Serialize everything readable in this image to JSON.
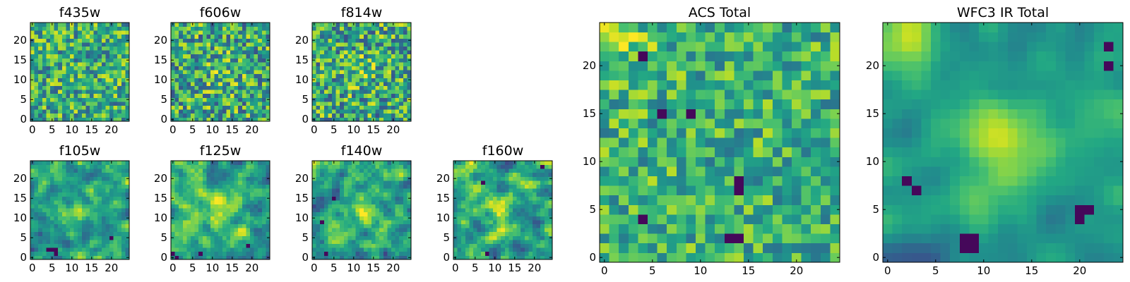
{
  "chart_data": [
    {
      "type": "heatmap",
      "title": "f435w",
      "xlabel": "",
      "ylabel": "",
      "grid_size": [
        25,
        25
      ],
      "xlim": [
        -0.5,
        24.5
      ],
      "ylim": [
        -0.5,
        24.5
      ],
      "xticks": [
        0,
        5,
        10,
        15,
        20
      ],
      "yticks": [
        0,
        5,
        10,
        15,
        20
      ],
      "grid": false,
      "colormap": "viridis",
      "texture": "fine-noise",
      "seed": 11,
      "mean": 0.62,
      "noise": 0.2,
      "smooth": 0,
      "peak": 0.0,
      "corner": 0.0,
      "dark_spots": []
    },
    {
      "type": "heatmap",
      "title": "f606w",
      "xlabel": "",
      "ylabel": "",
      "grid_size": [
        25,
        25
      ],
      "xlim": [
        -0.5,
        24.5
      ],
      "ylim": [
        -0.5,
        24.5
      ],
      "xticks": [
        0,
        5,
        10,
        15,
        20
      ],
      "yticks": [
        0,
        5,
        10,
        15,
        20
      ],
      "grid": false,
      "colormap": "viridis",
      "texture": "fine-noise",
      "seed": 23,
      "mean": 0.6,
      "noise": 0.22,
      "smooth": 0,
      "peak": 0.12,
      "corner": 0.0,
      "dark_spots": []
    },
    {
      "type": "heatmap",
      "title": "f814w",
      "xlabel": "",
      "ylabel": "",
      "grid_size": [
        25,
        25
      ],
      "xlim": [
        -0.5,
        24.5
      ],
      "ylim": [
        -0.5,
        24.5
      ],
      "xticks": [
        0,
        5,
        10,
        15,
        20
      ],
      "yticks": [
        0,
        5,
        10,
        15,
        20
      ],
      "grid": false,
      "colormap": "viridis",
      "texture": "fine-noise",
      "seed": 37,
      "mean": 0.6,
      "noise": 0.22,
      "smooth": 0,
      "peak": 0.12,
      "corner": 0.0,
      "dark_spots": []
    },
    {
      "type": "heatmap",
      "title": "f105w",
      "xlabel": "",
      "ylabel": "",
      "grid_size": [
        25,
        25
      ],
      "xlim": [
        -0.5,
        24.5
      ],
      "ylim": [
        -0.5,
        24.5
      ],
      "xticks": [
        0,
        5,
        10,
        15,
        20
      ],
      "yticks": [
        0,
        5,
        10,
        15,
        20
      ],
      "grid": false,
      "colormap": "viridis",
      "texture": "blotchy",
      "seed": 41,
      "mean": 0.58,
      "noise": 0.22,
      "smooth": 1,
      "peak": 0.22,
      "corner": 0.1,
      "dark_spots": [
        [
          5,
          2
        ],
        [
          6,
          2
        ],
        [
          6,
          1
        ],
        [
          4,
          2
        ],
        [
          20,
          5
        ]
      ]
    },
    {
      "type": "heatmap",
      "title": "f125w",
      "xlabel": "",
      "ylabel": "",
      "grid_size": [
        25,
        25
      ],
      "xlim": [
        -0.5,
        24.5
      ],
      "ylim": [
        -0.5,
        24.5
      ],
      "xticks": [
        0,
        5,
        10,
        15,
        20
      ],
      "yticks": [
        0,
        5,
        10,
        15,
        20
      ],
      "grid": false,
      "colormap": "viridis",
      "texture": "blotchy",
      "seed": 53,
      "mean": 0.6,
      "noise": 0.22,
      "smooth": 1,
      "peak": 0.25,
      "corner": 0.1,
      "dark_spots": [
        [
          0,
          1
        ],
        [
          1,
          0
        ],
        [
          7,
          1
        ],
        [
          19,
          3
        ]
      ]
    },
    {
      "type": "heatmap",
      "title": "f140w",
      "xlabel": "",
      "ylabel": "",
      "grid_size": [
        25,
        25
      ],
      "xlim": [
        -0.5,
        24.5
      ],
      "ylim": [
        -0.5,
        24.5
      ],
      "xticks": [
        0,
        5,
        10,
        15,
        20
      ],
      "yticks": [
        0,
        5,
        10,
        15,
        20
      ],
      "grid": false,
      "colormap": "viridis",
      "texture": "blotchy",
      "seed": 67,
      "mean": 0.56,
      "noise": 0.22,
      "smooth": 1,
      "peak": 0.22,
      "corner": 0.1,
      "dark_spots": [
        [
          3,
          1
        ],
        [
          2,
          9
        ],
        [
          5,
          15
        ]
      ]
    },
    {
      "type": "heatmap",
      "title": "f160w",
      "xlabel": "",
      "ylabel": "",
      "grid_size": [
        25,
        25
      ],
      "xlim": [
        -0.5,
        24.5
      ],
      "ylim": [
        -0.5,
        24.5
      ],
      "xticks": [
        0,
        5,
        10,
        15,
        20
      ],
      "yticks": [
        0,
        5,
        10,
        15,
        20
      ],
      "grid": false,
      "colormap": "viridis",
      "texture": "blotchy",
      "seed": 71,
      "mean": 0.58,
      "noise": 0.22,
      "smooth": 1,
      "peak": 0.22,
      "corner": 0.15,
      "dark_spots": [
        [
          8,
          1
        ],
        [
          7,
          19
        ],
        [
          22,
          23
        ]
      ]
    },
    {
      "type": "heatmap",
      "title": "ACS Total",
      "xlabel": "",
      "ylabel": "",
      "grid_size": [
        25,
        25
      ],
      "xlim": [
        -0.5,
        24.5
      ],
      "ylim": [
        -0.5,
        24.5
      ],
      "xticks": [
        0,
        5,
        10,
        15,
        20
      ],
      "yticks": [
        0,
        5,
        10,
        15,
        20
      ],
      "grid": false,
      "colormap": "viridis",
      "texture": "fine-noise",
      "seed": 83,
      "mean": 0.64,
      "noise": 0.16,
      "smooth": 0,
      "peak": 0.0,
      "corner": 0.15,
      "dark_spots": [
        [
          4,
          21
        ],
        [
          6,
          15
        ],
        [
          14,
          8
        ],
        [
          14,
          7
        ],
        [
          14,
          2
        ],
        [
          4,
          4
        ],
        [
          13,
          2
        ],
        [
          9,
          15
        ]
      ]
    },
    {
      "type": "heatmap",
      "title": "WFC3 IR Total",
      "xlabel": "",
      "ylabel": "",
      "grid_size": [
        25,
        25
      ],
      "xlim": [
        -0.5,
        24.5
      ],
      "ylim": [
        -0.5,
        24.5
      ],
      "xticks": [
        0,
        5,
        10,
        15,
        20
      ],
      "yticks": [
        0,
        5,
        10,
        15,
        20
      ],
      "grid": false,
      "colormap": "viridis",
      "texture": "smooth",
      "seed": 97,
      "mean": 0.5,
      "noise": 0.14,
      "smooth": 2,
      "peak": 0.35,
      "corner": 0.35,
      "dark_spots": [
        [
          8,
          1
        ],
        [
          8,
          2
        ],
        [
          9,
          1
        ],
        [
          9,
          2
        ],
        [
          20,
          5
        ],
        [
          20,
          4
        ],
        [
          21,
          5
        ],
        [
          2,
          8
        ],
        [
          3,
          7
        ],
        [
          23,
          20
        ],
        [
          23,
          22
        ]
      ]
    }
  ]
}
